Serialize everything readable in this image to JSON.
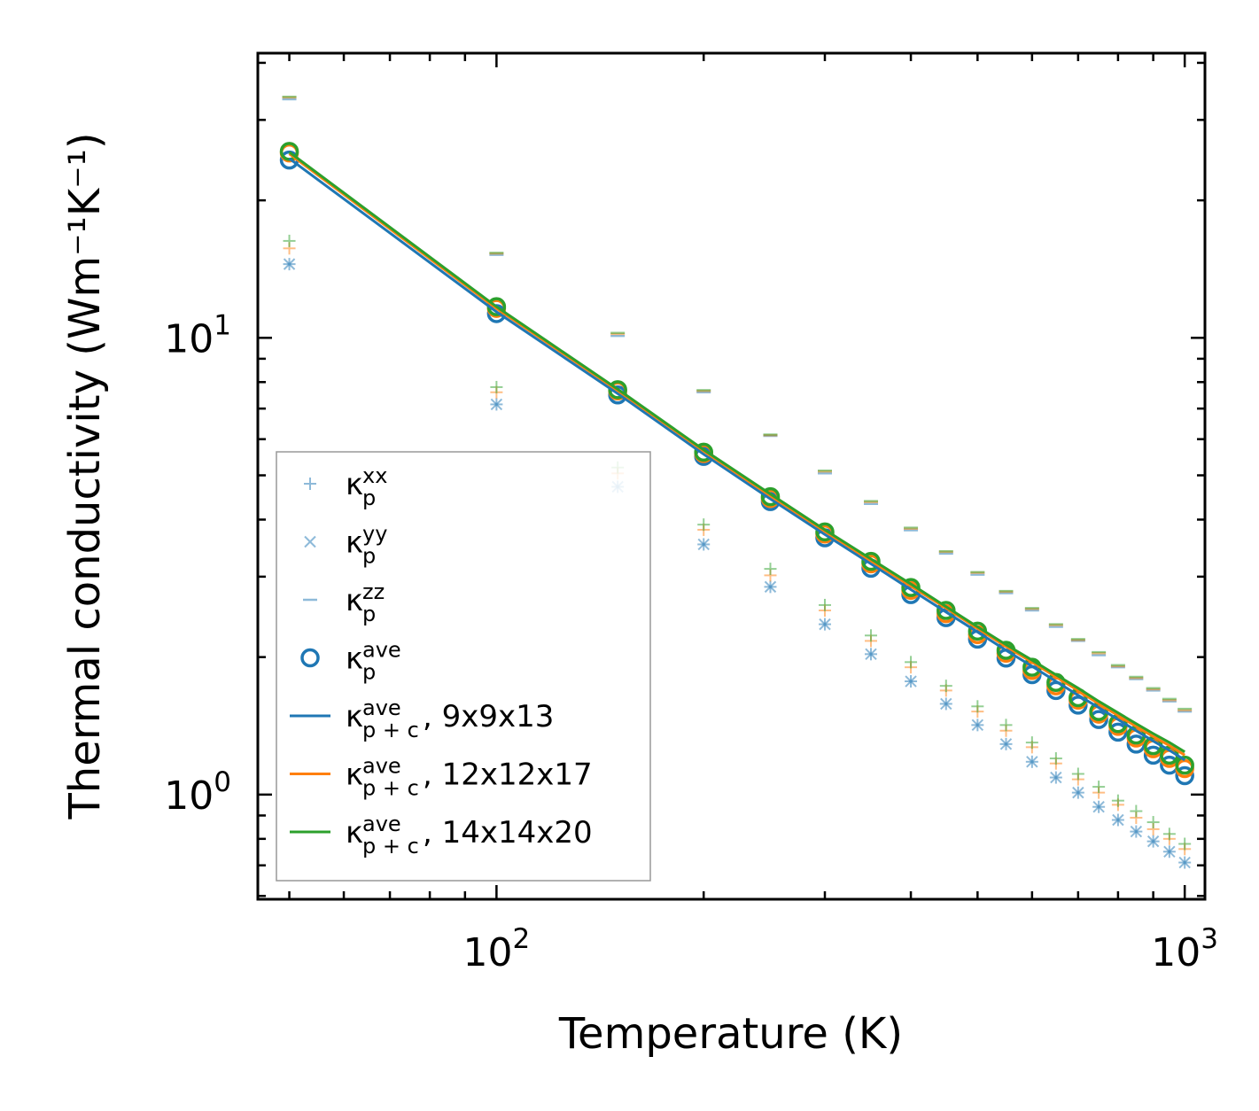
{
  "chart_data": {
    "type": "scatter",
    "title": "",
    "xlabel": "Temperature (K)",
    "ylabel": "Thermal conductivity (Wm⁻¹K⁻¹)",
    "xscale": "log",
    "yscale": "log",
    "xlim": [
      45,
      1070
    ],
    "ylim": [
      0.59,
      42
    ],
    "xticks": [
      {
        "value": 100,
        "base": "10",
        "exp": "2"
      },
      {
        "value": 1000,
        "base": "10",
        "exp": "3"
      }
    ],
    "yticks": [
      {
        "value": 1,
        "base": "10",
        "exp": "0"
      },
      {
        "value": 10,
        "base": "10",
        "exp": "1"
      }
    ],
    "legend_position": "lower-left",
    "x": [
      50,
      100,
      150,
      200,
      250,
      300,
      350,
      400,
      450,
      500,
      550,
      600,
      650,
      700,
      750,
      800,
      850,
      900,
      950,
      1000
    ],
    "series": [
      {
        "name": "κ_p^xx (9x9x13)",
        "marker": "plus",
        "color": "#1f77b4",
        "alpha": 0.5,
        "values": [
          14.5,
          7.15,
          4.72,
          3.53,
          2.85,
          2.36,
          2.03,
          1.77,
          1.58,
          1.42,
          1.29,
          1.18,
          1.09,
          1.01,
          0.94,
          0.88,
          0.83,
          0.79,
          0.75,
          0.71
        ]
      },
      {
        "name": "κ_p^xx (12x12x17)",
        "marker": "plus",
        "color": "#ff7f0e",
        "alpha": 0.5,
        "values": [
          15.7,
          7.6,
          5.05,
          3.8,
          3.02,
          2.53,
          2.17,
          1.9,
          1.69,
          1.52,
          1.38,
          1.27,
          1.17,
          1.08,
          1.01,
          0.95,
          0.89,
          0.84,
          0.8,
          0.76
        ]
      },
      {
        "name": "κ_p^xx (14x14x20)",
        "marker": "plus",
        "color": "#2ca02c",
        "alpha": 0.5,
        "values": [
          16.3,
          7.8,
          5.2,
          3.9,
          3.12,
          2.6,
          2.23,
          1.95,
          1.73,
          1.56,
          1.42,
          1.3,
          1.2,
          1.11,
          1.04,
          0.97,
          0.92,
          0.87,
          0.82,
          0.78
        ]
      },
      {
        "name": "κ_p^yy (9x9x13)",
        "marker": "x",
        "color": "#1f77b4",
        "alpha": 0.5,
        "values": [
          14.5,
          7.15,
          4.72,
          3.53,
          2.85,
          2.36,
          2.03,
          1.77,
          1.58,
          1.42,
          1.29,
          1.18,
          1.09,
          1.01,
          0.94,
          0.88,
          0.83,
          0.79,
          0.75,
          0.71
        ]
      },
      {
        "name": "κ_p^zz (9x9x13)",
        "marker": "dash",
        "color": "#1f77b4",
        "alpha": 0.5,
        "values": [
          33.3,
          15.2,
          10.1,
          7.6,
          6.1,
          5.05,
          4.33,
          3.79,
          3.37,
          3.03,
          2.76,
          2.53,
          2.33,
          2.17,
          2.02,
          1.9,
          1.79,
          1.69,
          1.6,
          1.52
        ]
      },
      {
        "name": "κ_p^zz (12x12x17)",
        "marker": "dash",
        "color": "#ff7f0e",
        "alpha": 0.5,
        "values": [
          33.6,
          15.3,
          10.2,
          7.65,
          6.12,
          5.1,
          4.37,
          3.82,
          3.4,
          3.06,
          2.78,
          2.55,
          2.35,
          2.18,
          2.04,
          1.91,
          1.8,
          1.7,
          1.61,
          1.53
        ]
      },
      {
        "name": "κ_p^zz (14x14x20)",
        "marker": "dash",
        "color": "#2ca02c",
        "alpha": 0.5,
        "values": [
          33.7,
          15.35,
          10.25,
          7.68,
          6.14,
          5.12,
          4.39,
          3.84,
          3.41,
          3.07,
          2.79,
          2.56,
          2.36,
          2.19,
          2.05,
          1.92,
          1.81,
          1.71,
          1.62,
          1.54
        ]
      },
      {
        "name": "κ_p^ave (9x9x13)",
        "marker": "circle",
        "color": "#1f77b4",
        "alpha": 1,
        "values": [
          24.5,
          11.3,
          7.5,
          5.5,
          4.38,
          3.65,
          3.13,
          2.74,
          2.44,
          2.19,
          1.99,
          1.83,
          1.69,
          1.57,
          1.46,
          1.37,
          1.29,
          1.22,
          1.16,
          1.1
        ]
      },
      {
        "name": "κ_p^ave (12x12x17)",
        "marker": "circle",
        "color": "#ff7f0e",
        "alpha": 1,
        "values": [
          25.4,
          11.6,
          7.65,
          5.58,
          4.45,
          3.72,
          3.2,
          2.8,
          2.49,
          2.24,
          2.04,
          1.87,
          1.73,
          1.61,
          1.5,
          1.41,
          1.33,
          1.26,
          1.2,
          1.14
        ]
      },
      {
        "name": "κ_p^ave (14x14x20)",
        "marker": "circle",
        "color": "#2ca02c",
        "alpha": 1,
        "values": [
          25.6,
          11.7,
          7.7,
          5.62,
          4.49,
          3.76,
          3.24,
          2.84,
          2.53,
          2.28,
          2.07,
          1.9,
          1.76,
          1.63,
          1.52,
          1.43,
          1.35,
          1.28,
          1.22,
          1.16
        ]
      },
      {
        "name": "κ_p+c^ave, 9x9x13",
        "marker": "line",
        "color": "#1f77b4",
        "alpha": 1,
        "values": [
          24.7,
          11.4,
          7.55,
          5.56,
          4.44,
          3.71,
          3.2,
          2.81,
          2.51,
          2.27,
          2.07,
          1.91,
          1.77,
          1.65,
          1.55,
          1.46,
          1.38,
          1.31,
          1.25,
          1.19
        ]
      },
      {
        "name": "κ_p+c^ave, 12x12x17",
        "marker": "line",
        "color": "#ff7f0e",
        "alpha": 1,
        "values": [
          25.3,
          11.6,
          7.67,
          5.65,
          4.51,
          3.77,
          3.25,
          2.86,
          2.56,
          2.31,
          2.11,
          1.95,
          1.81,
          1.69,
          1.58,
          1.49,
          1.41,
          1.34,
          1.28,
          1.22
        ]
      },
      {
        "name": "κ_p+c^ave, 14x14x20",
        "marker": "line",
        "color": "#2ca02c",
        "alpha": 1,
        "values": [
          25.5,
          11.7,
          7.72,
          5.69,
          4.55,
          3.8,
          3.28,
          2.89,
          2.58,
          2.33,
          2.13,
          1.97,
          1.83,
          1.71,
          1.6,
          1.51,
          1.43,
          1.36,
          1.3,
          1.24
        ]
      }
    ],
    "legend": [
      {
        "marker": "plus",
        "color": "#1f77b4",
        "alpha": 0.5,
        "base": "κ",
        "sup": "xx",
        "sub": "p",
        "suffix": ""
      },
      {
        "marker": "x",
        "color": "#1f77b4",
        "alpha": 0.5,
        "base": "κ",
        "sup": "yy",
        "sub": "p",
        "suffix": ""
      },
      {
        "marker": "dash",
        "color": "#1f77b4",
        "alpha": 0.5,
        "base": "κ",
        "sup": "zz",
        "sub": "p",
        "suffix": ""
      },
      {
        "marker": "circle",
        "color": "#1f77b4",
        "alpha": 1,
        "base": "κ",
        "sup": "ave",
        "sub": "p",
        "suffix": ""
      },
      {
        "marker": "line",
        "color": "#1f77b4",
        "alpha": 1,
        "base": "κ",
        "sup": "ave",
        "sub": "p + c",
        "suffix": ", 9x9x13"
      },
      {
        "marker": "line",
        "color": "#ff7f0e",
        "alpha": 1,
        "base": "κ",
        "sup": "ave",
        "sub": "p + c",
        "suffix": ", 12x12x17"
      },
      {
        "marker": "line",
        "color": "#2ca02c",
        "alpha": 1,
        "base": "κ",
        "sup": "ave",
        "sub": "p + c",
        "suffix": ", 14x14x20"
      }
    ]
  }
}
